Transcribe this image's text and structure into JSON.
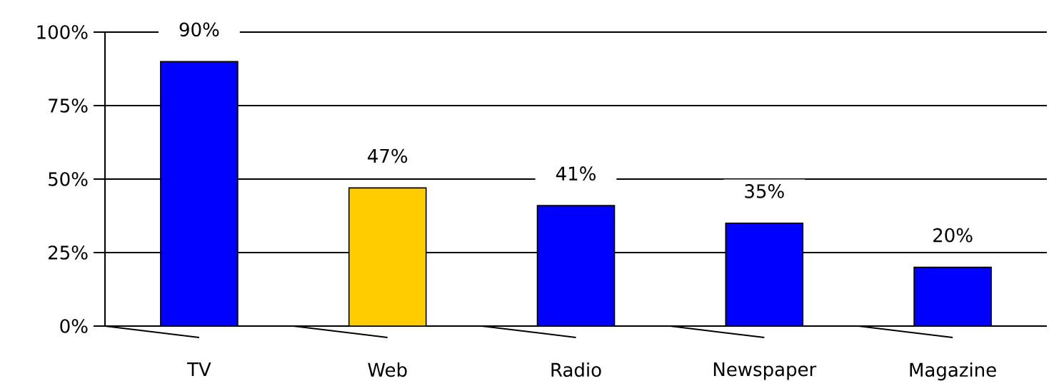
{
  "chart_data": {
    "type": "bar",
    "categories": [
      "TV",
      "Web",
      "Radio",
      "Newspaper",
      "Magazine"
    ],
    "values": [
      90,
      47,
      41,
      35,
      20
    ],
    "colors": [
      "#0000ff",
      "#ffcc00",
      "#0000ff",
      "#0000ff",
      "#0000ff"
    ],
    "value_labels": [
      "90%",
      "47%",
      "41%",
      "35%",
      "20%"
    ],
    "ylim": [
      0,
      100
    ],
    "yticks": [
      {
        "value": 0,
        "label": "0%"
      },
      {
        "value": 25,
        "label": "25%"
      },
      {
        "value": 50,
        "label": "50%"
      },
      {
        "value": 75,
        "label": "75%"
      },
      {
        "value": 100,
        "label": "100%"
      }
    ],
    "grid": "y"
  }
}
